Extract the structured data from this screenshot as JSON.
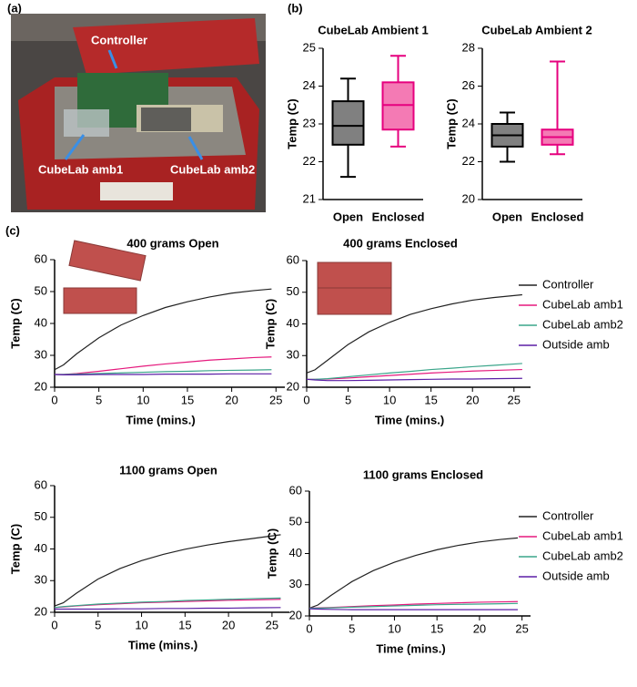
{
  "panel_labels": [
    "(a)",
    "(b)",
    "(c)"
  ],
  "photo": {
    "labels": [
      "Controller",
      "CubeLab amb1",
      "CubeLab amb2"
    ]
  },
  "chart_data": [
    {
      "type": "box",
      "title": "CubeLab Ambient 1",
      "y_label": "Temp (C)",
      "categories": [
        "Open",
        "Enclosed"
      ],
      "min": [
        21.6,
        22.4
      ],
      "q1": [
        22.45,
        22.85
      ],
      "median": [
        22.95,
        23.5
      ],
      "q3": [
        23.6,
        24.1
      ],
      "max": [
        24.2,
        24.8
      ],
      "colors": [
        "#808080",
        "#f47ab4"
      ],
      "edge_colors": [
        "#000000",
        "#e6007e"
      ],
      "ylim": [
        21,
        25
      ],
      "yticks": [
        21,
        22,
        23,
        24,
        25
      ]
    },
    {
      "type": "box",
      "title": "CubeLab Ambient 2",
      "y_label": "Temp (C)",
      "categories": [
        "Open",
        "Enclosed"
      ],
      "min": [
        22.0,
        22.4
      ],
      "q1": [
        22.8,
        22.9
      ],
      "median": [
        23.4,
        23.3
      ],
      "q3": [
        24.0,
        23.7
      ],
      "max": [
        24.6,
        27.3
      ],
      "colors": [
        "#808080",
        "#f47ab4"
      ],
      "edge_colors": [
        "#000000",
        "#e6007e"
      ],
      "ylim": [
        20,
        28
      ],
      "yticks": [
        20,
        22,
        24,
        26,
        28
      ]
    },
    {
      "type": "line",
      "title": "400 grams Open",
      "x_label": "Time (mins.)",
      "y_label": "Temp (C)",
      "legend": false,
      "x": [
        0,
        1,
        2.5,
        5,
        7.5,
        10,
        12.5,
        15,
        17.5,
        20,
        22.5,
        24.5
      ],
      "series": [
        {
          "name": "Controller",
          "color": "#222222",
          "values": [
            25.5,
            27,
            30.5,
            35.5,
            39.5,
            42.5,
            45,
            46.8,
            48.3,
            49.5,
            50.3,
            50.8
          ]
        },
        {
          "name": "CubeLab amb1",
          "color": "#e5197d",
          "values": [
            24,
            24,
            24.3,
            25,
            25.8,
            26.6,
            27.3,
            27.9,
            28.5,
            28.9,
            29.3,
            29.5
          ]
        },
        {
          "name": "CubeLab amb2",
          "color": "#3aa58a",
          "values": [
            24,
            24,
            24.1,
            24.3,
            24.5,
            24.7,
            24.9,
            25.0,
            25.2,
            25.3,
            25.4,
            25.5
          ]
        },
        {
          "name": "Outside amb",
          "color": "#5b1fa6",
          "values": [
            24,
            23.9,
            23.9,
            24,
            24,
            24,
            24.1,
            24.1,
            24.1,
            24.2,
            24.2,
            24.2
          ]
        }
      ],
      "xlim": [
        0,
        26
      ],
      "xticks": [
        0,
        5,
        10,
        15,
        20,
        25
      ],
      "ylim": [
        20,
        60
      ],
      "yticks": [
        20,
        30,
        40,
        50,
        60
      ]
    },
    {
      "type": "line",
      "title": "400 grams Enclosed",
      "x_label": "Time (mins.)",
      "y_label": "Temp (C)",
      "legend": true,
      "legend_position": "right",
      "x": [
        0,
        1,
        2.5,
        5,
        7.5,
        10,
        12.5,
        15,
        17.5,
        20,
        22.5,
        26
      ],
      "series": [
        {
          "name": "Controller",
          "color": "#222222",
          "values": [
            24.5,
            25.5,
            28.5,
            33.5,
            37.5,
            40.5,
            43,
            44.8,
            46.3,
            47.5,
            48.3,
            49.2
          ]
        },
        {
          "name": "CubeLab amb1",
          "color": "#e5197d",
          "values": [
            22.5,
            22.5,
            22.6,
            22.9,
            23.3,
            23.7,
            24.1,
            24.5,
            24.8,
            25.1,
            25.3,
            25.6
          ]
        },
        {
          "name": "CubeLab amb2",
          "color": "#3aa58a",
          "values": [
            22.5,
            22.5,
            22.7,
            23.3,
            23.9,
            24.5,
            25,
            25.6,
            26,
            26.5,
            26.9,
            27.5
          ]
        },
        {
          "name": "Outside amb",
          "color": "#5b1fa6",
          "values": [
            22.5,
            22.3,
            22.1,
            22.1,
            22.2,
            22.3,
            22.4,
            22.5,
            22.6,
            22.6,
            22.7,
            22.8
          ]
        }
      ],
      "xlim": [
        0,
        27
      ],
      "xticks": [
        0,
        5,
        10,
        15,
        20,
        25
      ],
      "ylim": [
        20,
        60
      ],
      "yticks": [
        20,
        30,
        40,
        50,
        60
      ]
    },
    {
      "type": "line",
      "title": "1100 grams Open",
      "x_label": "Time (mins.)",
      "y_label": "Temp (C)",
      "legend": false,
      "x": [
        0,
        1,
        2.5,
        5,
        7.5,
        10,
        12.5,
        15,
        17.5,
        20,
        22.5,
        26
      ],
      "series": [
        {
          "name": "Controller",
          "color": "#222222",
          "values": [
            22,
            23,
            26,
            30.5,
            33.8,
            36.3,
            38.3,
            39.9,
            41.2,
            42.3,
            43.2,
            44.5
          ]
        },
        {
          "name": "CubeLab amb1",
          "color": "#e5197d",
          "values": [
            21.5,
            21.7,
            22,
            22.4,
            22.7,
            23,
            23.2,
            23.4,
            23.6,
            23.8,
            23.9,
            24.1
          ]
        },
        {
          "name": "CubeLab amb2",
          "color": "#3aa58a",
          "values": [
            21.5,
            21.8,
            22.1,
            22.6,
            22.9,
            23.2,
            23.4,
            23.7,
            23.9,
            24.1,
            24.3,
            24.5
          ]
        },
        {
          "name": "Outside amb",
          "color": "#5b1fa6",
          "values": [
            21,
            21,
            21,
            21,
            21.1,
            21.1,
            21.2,
            21.2,
            21.3,
            21.3,
            21.4,
            21.5
          ]
        }
      ],
      "xlim": [
        0,
        27
      ],
      "xticks": [
        0,
        5,
        10,
        15,
        20,
        25
      ],
      "ylim": [
        20,
        60
      ],
      "yticks": [
        20,
        30,
        40,
        50,
        60
      ]
    },
    {
      "type": "line",
      "title": "1100 grams Enclosed",
      "x_label": "Time (mins.)",
      "y_label": "Temp (C)",
      "legend": true,
      "legend_position": "right",
      "x": [
        0,
        1,
        2.5,
        5,
        7.5,
        10,
        12.5,
        15,
        17.5,
        20,
        22.5,
        24.5
      ],
      "series": [
        {
          "name": "Controller",
          "color": "#222222",
          "values": [
            22.5,
            23.5,
            26.5,
            31,
            34.5,
            37.2,
            39.4,
            41.2,
            42.6,
            43.7,
            44.5,
            45
          ]
        },
        {
          "name": "CubeLab amb1",
          "color": "#e5197d",
          "values": [
            22.5,
            22.6,
            22.7,
            23,
            23.3,
            23.5,
            23.8,
            24,
            24.2,
            24.4,
            24.5,
            24.6
          ]
        },
        {
          "name": "CubeLab amb2",
          "color": "#3aa58a",
          "values": [
            22.5,
            22.5,
            22.6,
            22.8,
            23,
            23.2,
            23.4,
            23.6,
            23.7,
            23.8,
            23.9,
            24
          ]
        },
        {
          "name": "Outside amb",
          "color": "#5b1fa6",
          "values": [
            22.3,
            22.2,
            22.1,
            22,
            22,
            22,
            22,
            22,
            22,
            22,
            22,
            22
          ]
        }
      ],
      "xlim": [
        0,
        26
      ],
      "xticks": [
        0,
        5,
        10,
        15,
        20,
        25
      ],
      "ylim": [
        20,
        60
      ],
      "yticks": [
        20,
        30,
        40,
        50,
        60
      ]
    }
  ]
}
